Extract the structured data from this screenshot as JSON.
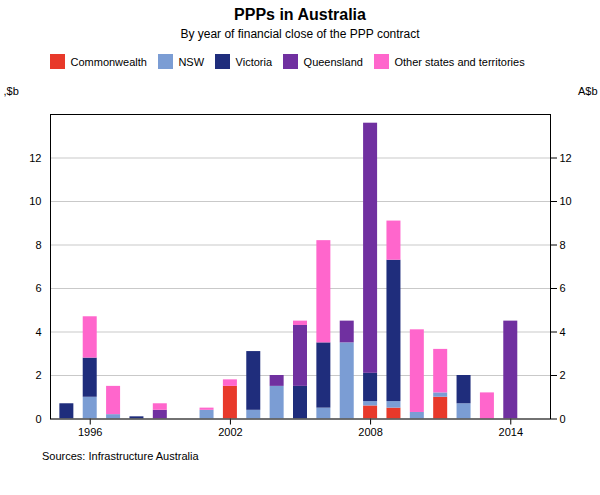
{
  "chart_data": {
    "type": "bar",
    "stacked": true,
    "title": "PPPs in Australia",
    "subtitle": "By year of financial close of the PPP contract",
    "ylabel": ",$b",
    "y2label": "A$b",
    "source": "Sources: Infrastructure Australia",
    "x": [
      1995,
      1996,
      1997,
      1998,
      1999,
      2000,
      2001,
      2002,
      2003,
      2004,
      2005,
      2006,
      2007,
      2008,
      2009,
      2010,
      2011,
      2012,
      2013,
      2014
    ],
    "xlim": [
      1994.3,
      2015.7
    ],
    "xticks": [
      1996,
      2002,
      2008,
      2014
    ],
    "ylim": [
      0,
      14
    ],
    "yticks": [
      0,
      2,
      4,
      6,
      8,
      10,
      12
    ],
    "y2lim": [
      0,
      14
    ],
    "y2ticks": [
      0,
      2,
      4,
      6,
      8,
      10,
      12
    ],
    "grid": true,
    "legend": "upper left",
    "series": [
      {
        "name": "Commonwealth",
        "color": "#e8392a",
        "values": [
          0.0,
          0.0,
          0.0,
          0.0,
          0.0,
          0.0,
          0.0,
          1.5,
          0.0,
          0.0,
          0.0,
          0.0,
          0.0,
          0.6,
          0.5,
          0.0,
          1.0,
          0.0,
          0.0,
          0.0
        ]
      },
      {
        "name": "NSW",
        "color": "#7b9dd4",
        "values": [
          0.0,
          1.0,
          0.2,
          0.0,
          0.0,
          0.0,
          0.4,
          0.0,
          0.4,
          1.5,
          0.0,
          0.5,
          3.5,
          0.2,
          0.3,
          0.3,
          0.2,
          0.7,
          0.0,
          0.0
        ]
      },
      {
        "name": "Victoria",
        "color": "#1f2d7c",
        "values": [
          0.7,
          1.8,
          0.0,
          0.1,
          0.0,
          0.0,
          0.0,
          0.0,
          2.7,
          0.0,
          1.5,
          3.0,
          0.0,
          1.3,
          6.5,
          0.0,
          0.0,
          1.3,
          0.0,
          0.0
        ]
      },
      {
        "name": "Queensland",
        "color": "#7030a0",
        "values": [
          0.0,
          0.0,
          0.0,
          0.0,
          0.4,
          0.0,
          0.0,
          0.0,
          0.0,
          0.5,
          2.8,
          0.0,
          1.0,
          11.5,
          0.0,
          0.0,
          0.0,
          0.0,
          0.0,
          4.5
        ]
      },
      {
        "name": "Other states and territories",
        "color": "#ff66cc",
        "values": [
          0.0,
          1.9,
          1.3,
          0.0,
          0.3,
          0.0,
          0.1,
          0.3,
          0.0,
          0.0,
          0.2,
          4.7,
          0.0,
          0.0,
          1.8,
          3.8,
          2.0,
          0.0,
          1.2,
          0.0
        ]
      }
    ]
  }
}
